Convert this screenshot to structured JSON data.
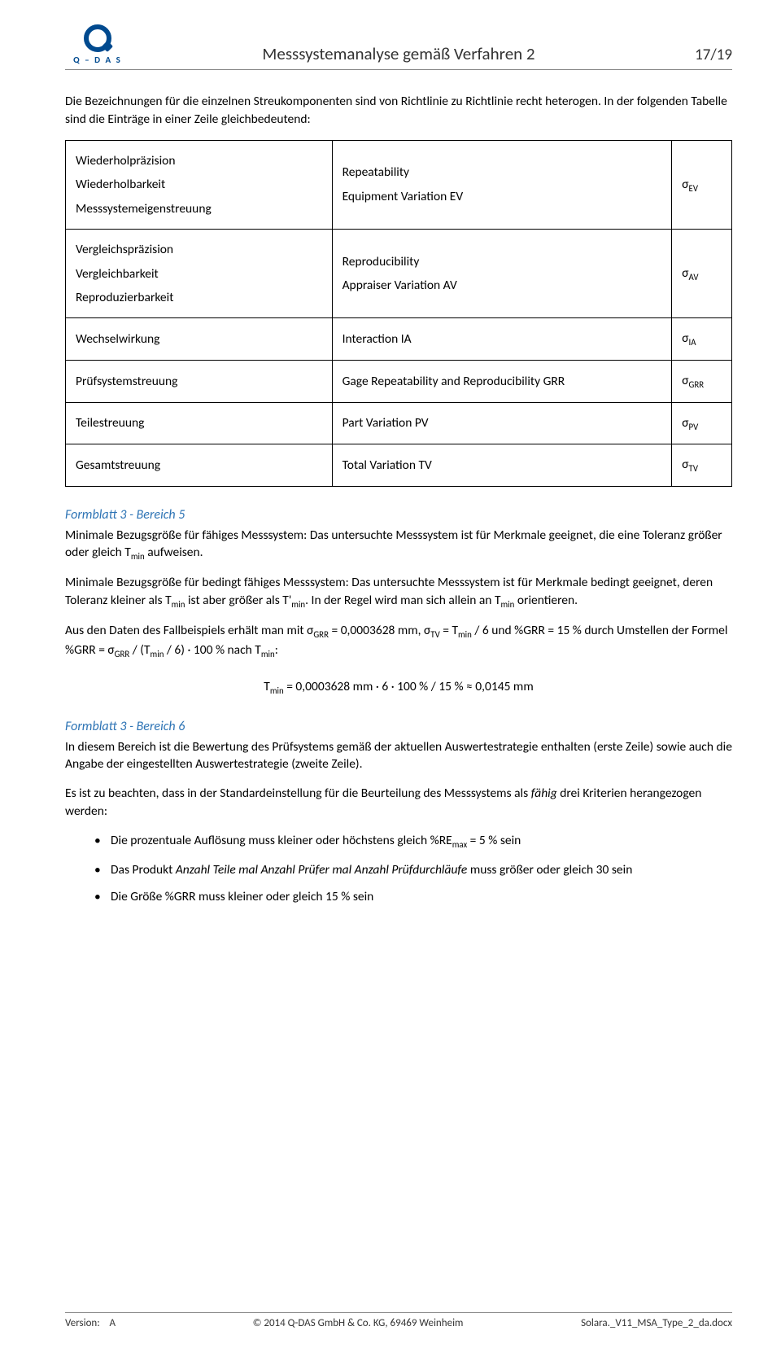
{
  "header": {
    "logo_text": "Q – D A S",
    "title": "Messsystemanalyse gemäß Verfahren 2",
    "page": "17/19"
  },
  "intro": {
    "p1": "Die Bezeichnungen für die einzelnen Streukomponenten sind von Richtlinie zu Richtlinie recht heterogen. In der folgenden Tabelle sind die Einträge in einer Zeile gleichbedeutend:"
  },
  "defs_table": {
    "rows": [
      {
        "col1_lines": [
          "Wiederholpräzision",
          "Wiederholbarkeit",
          "Messsystemeigenstreuung"
        ],
        "col2_lines": [
          "Repeatability",
          "Equipment Variation EV"
        ],
        "sigma_sub": "EV"
      },
      {
        "col1_lines": [
          "Vergleichspräzision",
          "Vergleichbarkeit",
          "Reproduzierbarkeit"
        ],
        "col2_lines": [
          "Reproducibility",
          "Appraiser Variation AV"
        ],
        "sigma_sub": "AV"
      },
      {
        "col1_lines": [
          "Wechselwirkung"
        ],
        "col2_lines": [
          "Interaction IA"
        ],
        "sigma_sub": "IA"
      },
      {
        "col1_lines": [
          "Prüfsystemstreuung"
        ],
        "col2_lines": [
          "Gage Repeatability and Reproducibility GRR"
        ],
        "sigma_sub": "GRR"
      },
      {
        "col1_lines": [
          "Teilestreuung"
        ],
        "col2_lines": [
          "Part Variation PV"
        ],
        "sigma_sub": "PV"
      },
      {
        "col1_lines": [
          "Gesamtstreuung"
        ],
        "col2_lines": [
          "Total Variation TV"
        ],
        "sigma_sub": "TV"
      }
    ]
  },
  "section5": {
    "heading": "Formblatt 3 - Bereich 5",
    "p1_before": "Minimale Bezugsgröße für fähiges Messsystem: Das untersuchte Messsystem ist für Merkmale geeignet, die eine Toleranz größer oder gleich T",
    "p1_sub": "min",
    "p1_after": " aufweisen.",
    "p2_a": "Minimale Bezugsgröße für bedingt fähiges Messsystem: Das untersuchte Messsystem ist für Merkmale bedingt geeignet, deren Toleranz kleiner als T",
    "p2_b": " ist aber größer als T'",
    "p2_c": ". In der Regel wird man sich allein an T",
    "p2_d": " orientieren.",
    "p3_a": "Aus den Daten des Fallbeispiels erhält man mit σ",
    "p3_a_sub": "GRR",
    "p3_b": " = 0,0003628 mm, σ",
    "p3_b_sub": "TV",
    "p3_c": " = T",
    "p3_d": " / 6 und %GRR = 15 % durch Umstellen der Formel %GRR = σ",
    "p3_d_sub": "GRR",
    "p3_e": " / (T",
    "p3_f": " / 6) · 100 % nach T",
    "p3_g": ":",
    "eq_a": "T",
    "eq_b": " = 0,0003628 mm · 6 · 100 % / 15 % ≈ 0,0145 mm"
  },
  "section6": {
    "heading": "Formblatt 3 - Bereich 6",
    "p1": "In diesem Bereich ist die Bewertung des Prüfsystems gemäß der aktuellen Auswertestrategie enthalten (erste Zeile) sowie auch die Angabe der eingestellten Auswertestrategie (zweite Zeile).",
    "p2_a": "Es ist zu beachten, dass in der Standardeinstellung für die Beurteilung des Messsystems als ",
    "p2_italic": "fähig",
    "p2_b": " drei Kriterien herangezogen werden:",
    "bullets": {
      "b1_a": "Die prozentuale Auflösung muss kleiner oder höchstens gleich %RE",
      "b1_sub": "max",
      "b1_b": " = 5 % sein",
      "b2_a": "Das Produkt ",
      "b2_italic": "Anzahl Teile mal Anzahl Prüfer mal Anzahl Prüfdurchläufe",
      "b2_b": " muss größer oder gleich 30 sein",
      "b3": "Die Größe %GRR muss kleiner oder gleich 15 % sein"
    }
  },
  "footer": {
    "version_label": "Version:",
    "version_value": "A",
    "copyright": "© 2014  Q-DAS GmbH & Co. KG,  69469 Weinheim",
    "filename": "Solara._V11_MSA_Type_2_da.docx"
  }
}
